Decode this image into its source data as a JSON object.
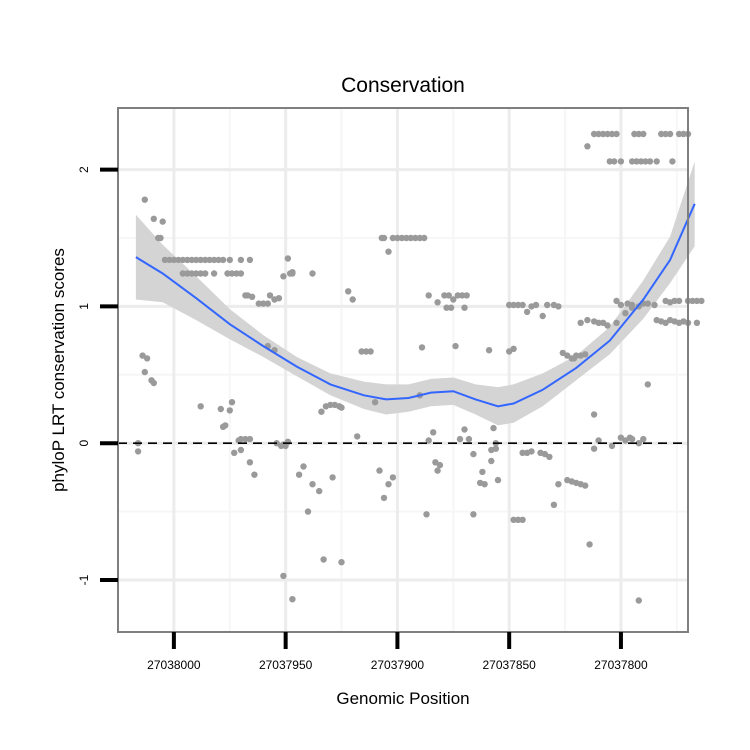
{
  "chart_data": {
    "type": "scatter",
    "title": "Conservation",
    "xlabel": "Genomic Position",
    "ylabel": "phyloP LRT conservation scores",
    "x_reversed": true,
    "xlim": [
      27038025,
      27037770
    ],
    "ylim": [
      -1.38,
      2.45
    ],
    "x_ticks": [
      {
        "value": 27038000,
        "label": "27038000"
      },
      {
        "value": 27037950,
        "label": "27037950"
      },
      {
        "value": 27037900,
        "label": "27037900"
      },
      {
        "value": 27037850,
        "label": "27037850"
      },
      {
        "value": 27037800,
        "label": "27037800"
      }
    ],
    "y_ticks": [
      {
        "value": -1,
        "label": "-1"
      },
      {
        "value": 0,
        "label": "0"
      },
      {
        "value": 1,
        "label": "1"
      },
      {
        "value": 2,
        "label": "2"
      }
    ],
    "reference_line": {
      "y": 0,
      "style": "dashed"
    },
    "smooth_line": {
      "color": "#3366ff",
      "fit": [
        [
          27038017,
          1.36
        ],
        [
          27038005,
          1.24
        ],
        [
          27037990,
          1.06
        ],
        [
          27037975,
          0.87
        ],
        [
          27037960,
          0.71
        ],
        [
          27037945,
          0.56
        ],
        [
          27037930,
          0.43
        ],
        [
          27037915,
          0.35
        ],
        [
          27037905,
          0.32
        ],
        [
          27037895,
          0.33
        ],
        [
          27037885,
          0.37
        ],
        [
          27037875,
          0.38
        ],
        [
          27037865,
          0.32
        ],
        [
          27037855,
          0.27
        ],
        [
          27037848,
          0.29
        ],
        [
          27037835,
          0.39
        ],
        [
          27037820,
          0.55
        ],
        [
          27037805,
          0.75
        ],
        [
          27037790,
          1.05
        ],
        [
          27037778,
          1.34
        ],
        [
          27037767,
          1.75
        ]
      ],
      "upper": [
        [
          27038017,
          1.67
        ],
        [
          27038005,
          1.45
        ],
        [
          27037990,
          1.22
        ],
        [
          27037975,
          0.98
        ],
        [
          27037960,
          0.79
        ],
        [
          27037945,
          0.63
        ],
        [
          27037930,
          0.51
        ],
        [
          27037915,
          0.45
        ],
        [
          27037905,
          0.43
        ],
        [
          27037895,
          0.43
        ],
        [
          27037885,
          0.47
        ],
        [
          27037875,
          0.48
        ],
        [
          27037865,
          0.43
        ],
        [
          27037855,
          0.41
        ],
        [
          27037848,
          0.43
        ],
        [
          27037835,
          0.51
        ],
        [
          27037820,
          0.64
        ],
        [
          27037805,
          0.85
        ],
        [
          27037790,
          1.19
        ],
        [
          27037778,
          1.51
        ],
        [
          27037767,
          2.06
        ]
      ],
      "lower": [
        [
          27038017,
          1.05
        ],
        [
          27038005,
          1.03
        ],
        [
          27037990,
          0.9
        ],
        [
          27037975,
          0.76
        ],
        [
          27037960,
          0.63
        ],
        [
          27037945,
          0.49
        ],
        [
          27037930,
          0.35
        ],
        [
          27037915,
          0.25
        ],
        [
          27037905,
          0.21
        ],
        [
          27037895,
          0.23
        ],
        [
          27037885,
          0.27
        ],
        [
          27037875,
          0.28
        ],
        [
          27037865,
          0.21
        ],
        [
          27037855,
          0.13
        ],
        [
          27037848,
          0.15
        ],
        [
          27037835,
          0.27
        ],
        [
          27037820,
          0.46
        ],
        [
          27037805,
          0.65
        ],
        [
          27037790,
          0.91
        ],
        [
          27037778,
          1.17
        ],
        [
          27037767,
          1.44
        ]
      ]
    },
    "points": [
      [
        27038016,
        0.0
      ],
      [
        27038016,
        -0.06
      ],
      [
        27038014,
        0.64
      ],
      [
        27038013,
        0.52
      ],
      [
        27038012,
        0.62
      ],
      [
        27038013,
        1.78
      ],
      [
        27038010,
        0.46
      ],
      [
        27038009,
        0.44
      ],
      [
        27038009,
        1.64
      ],
      [
        27038007,
        1.5
      ],
      [
        27038006,
        1.5
      ],
      [
        27038005,
        1.62
      ],
      [
        27038004,
        1.34
      ],
      [
        27038002,
        1.34
      ],
      [
        27038000,
        1.34
      ],
      [
        27037998,
        1.34
      ],
      [
        27037996,
        1.34
      ],
      [
        27037994,
        1.34
      ],
      [
        27037992,
        1.34
      ],
      [
        27037990,
        1.34
      ],
      [
        27037988,
        1.34
      ],
      [
        27037986,
        1.34
      ],
      [
        27037984,
        1.34
      ],
      [
        27037982,
        1.34
      ],
      [
        27037980,
        1.34
      ],
      [
        27037978,
        1.34
      ],
      [
        27037975,
        1.34
      ],
      [
        27037970,
        1.34
      ],
      [
        27037966,
        1.34
      ],
      [
        27037996,
        1.24
      ],
      [
        27037994,
        1.24
      ],
      [
        27037992,
        1.24
      ],
      [
        27037990,
        1.24
      ],
      [
        27037988,
        1.24
      ],
      [
        27037986,
        1.24
      ],
      [
        27037982,
        1.24
      ],
      [
        27037976,
        1.24
      ],
      [
        27037974,
        1.24
      ],
      [
        27037972,
        1.24
      ],
      [
        27037970,
        1.24
      ],
      [
        27037988,
        0.27
      ],
      [
        27037979,
        0.25
      ],
      [
        27037978,
        0.12
      ],
      [
        27037977,
        0.13
      ],
      [
        27037975,
        0.24
      ],
      [
        27037974,
        0.3
      ],
      [
        27037971,
        0.02
      ],
      [
        27037970,
        0.03
      ],
      [
        27037968,
        0.03
      ],
      [
        27037966,
        0.03
      ],
      [
        27037968,
        1.08
      ],
      [
        27037967,
        1.08
      ],
      [
        27037965,
        1.07
      ],
      [
        27037962,
        1.02
      ],
      [
        27037960,
        1.02
      ],
      [
        27037958,
        1.02
      ],
      [
        27037957,
        1.08
      ],
      [
        27037955,
        1.05
      ],
      [
        27037953,
        1.06
      ],
      [
        27037973,
        -0.07
      ],
      [
        27037970,
        -0.05
      ],
      [
        27037966,
        -0.14
      ],
      [
        27037964,
        -0.23
      ],
      [
        27037958,
        0.71
      ],
      [
        27037955,
        0.68
      ],
      [
        27037954,
        0.0
      ],
      [
        27037952,
        -0.02
      ],
      [
        27037951,
        -0.01
      ],
      [
        27037950,
        -0.02
      ],
      [
        27037949,
        0.01
      ],
      [
        27037951,
        1.22
      ],
      [
        27037949,
        1.35
      ],
      [
        27037947,
        1.25
      ],
      [
        27037948,
        1.24
      ],
      [
        27037947,
        1.24
      ],
      [
        27037938,
        1.24
      ],
      [
        27037951,
        -0.97
      ],
      [
        27037947,
        -1.14
      ],
      [
        27037944,
        -0.23
      ],
      [
        27037942,
        -0.17
      ],
      [
        27037938,
        -0.3
      ],
      [
        27037940,
        -0.5
      ],
      [
        27037935,
        -0.35
      ],
      [
        27037934,
        0.23
      ],
      [
        27037932,
        0.27
      ],
      [
        27037930,
        0.28
      ],
      [
        27037928,
        0.28
      ],
      [
        27037926,
        0.27
      ],
      [
        27037925,
        0.26
      ],
      [
        27037933,
        -0.85
      ],
      [
        27037929,
        -0.25
      ],
      [
        27037925,
        -0.87
      ],
      [
        27037922,
        1.11
      ],
      [
        27037920,
        1.05
      ],
      [
        27037918,
        0.05
      ],
      [
        27037916,
        0.67
      ],
      [
        27037914,
        0.67
      ],
      [
        27037912,
        0.67
      ],
      [
        27037910,
        0.3
      ],
      [
        27037908,
        -0.2
      ],
      [
        27037906,
        -0.4
      ],
      [
        27037904,
        -0.3
      ],
      [
        27037902,
        -0.25
      ],
      [
        27037907,
        1.5
      ],
      [
        27037906,
        1.5
      ],
      [
        27037904,
        1.4
      ],
      [
        27037902,
        1.5
      ],
      [
        27037900,
        1.5
      ],
      [
        27037898,
        1.5
      ],
      [
        27037896,
        1.5
      ],
      [
        27037894,
        1.5
      ],
      [
        27037892,
        1.5
      ],
      [
        27037890,
        1.5
      ],
      [
        27037888,
        1.5
      ],
      [
        27037890,
        0.35
      ],
      [
        27037889,
        0.7
      ],
      [
        27037887,
        -0.52
      ],
      [
        27037886,
        0.02
      ],
      [
        27037884,
        0.08
      ],
      [
        27037883,
        -0.14
      ],
      [
        27037882,
        -0.2
      ],
      [
        27037881,
        -0.16
      ],
      [
        27037886,
        1.08
      ],
      [
        27037882,
        1.03
      ],
      [
        27037879,
        1.08
      ],
      [
        27037877,
        1.08
      ],
      [
        27037875,
        1.05
      ],
      [
        27037873,
        1.08
      ],
      [
        27037871,
        1.08
      ],
      [
        27037869,
        1.08
      ],
      [
        27037876,
        0.99
      ],
      [
        27037878,
        0.99
      ],
      [
        27037870,
        0.99
      ],
      [
        27037874,
        0.71
      ],
      [
        27037872,
        0.03
      ],
      [
        27037870,
        0.1
      ],
      [
        27037868,
        0.03
      ],
      [
        27037866,
        -0.08
      ],
      [
        27037863,
        -0.29
      ],
      [
        27037861,
        -0.3
      ],
      [
        27037858,
        -0.13
      ],
      [
        27037856,
        -0.04
      ],
      [
        27037855,
        -0.27
      ],
      [
        27037856,
        0.0
      ],
      [
        27037857,
        0.11
      ],
      [
        27037859,
        0.68
      ],
      [
        27037866,
        -0.52
      ],
      [
        27037862,
        -0.21
      ],
      [
        27037858,
        -0.05
      ],
      [
        27037848,
        -0.56
      ],
      [
        27037846,
        -0.56
      ],
      [
        27037844,
        -0.56
      ],
      [
        27037850,
        1.01
      ],
      [
        27037848,
        1.01
      ],
      [
        27037846,
        1.01
      ],
      [
        27037844,
        1.01
      ],
      [
        27037842,
        0.96
      ],
      [
        27037840,
        1.0
      ],
      [
        27037838,
        1.01
      ],
      [
        27037835,
        0.93
      ],
      [
        27037833,
        1.01
      ],
      [
        27037830,
        1.01
      ],
      [
        27037828,
        1.0
      ],
      [
        27037850,
        0.67
      ],
      [
        27037848,
        0.69
      ],
      [
        27037844,
        -0.07
      ],
      [
        27037842,
        -0.07
      ],
      [
        27037840,
        -0.06
      ],
      [
        27037836,
        -0.07
      ],
      [
        27037834,
        -0.08
      ],
      [
        27037832,
        -0.1
      ],
      [
        27037830,
        -0.45
      ],
      [
        27037828,
        -0.3
      ],
      [
        27037826,
        0.66
      ],
      [
        27037824,
        0.64
      ],
      [
        27037822,
        0.62
      ],
      [
        27037821,
        0.62
      ],
      [
        27037820,
        0.64
      ],
      [
        27037818,
        0.64
      ],
      [
        27037816,
        0.65
      ],
      [
        27037824,
        -0.27
      ],
      [
        27037822,
        -0.28
      ],
      [
        27037820,
        -0.29
      ],
      [
        27037818,
        -0.3
      ],
      [
        27037816,
        -0.31
      ],
      [
        27037814,
        -0.74
      ],
      [
        27037812,
        -0.04
      ],
      [
        27037818,
        0.88
      ],
      [
        27037815,
        0.9
      ],
      [
        27037812,
        0.89
      ],
      [
        27037810,
        0.88
      ],
      [
        27037808,
        0.88
      ],
      [
        27037806,
        0.86
      ],
      [
        27037802,
        0.88
      ],
      [
        27037798,
        0.95
      ],
      [
        27037795,
        0.99
      ],
      [
        27037815,
        2.17
      ],
      [
        27037812,
        2.26
      ],
      [
        27037810,
        2.26
      ],
      [
        27037808,
        2.26
      ],
      [
        27037806,
        2.26
      ],
      [
        27037804,
        2.26
      ],
      [
        27037802,
        2.26
      ],
      [
        27037794,
        2.26
      ],
      [
        27037792,
        2.26
      ],
      [
        27037790,
        2.26
      ],
      [
        27037782,
        2.26
      ],
      [
        27037780,
        2.26
      ],
      [
        27037778,
        2.26
      ],
      [
        27037774,
        2.26
      ],
      [
        27037772,
        2.26
      ],
      [
        27037770,
        2.26
      ],
      [
        27037805,
        2.06
      ],
      [
        27037803,
        2.06
      ],
      [
        27037800,
        2.06
      ],
      [
        27037795,
        2.06
      ],
      [
        27037793,
        2.06
      ],
      [
        27037791,
        2.06
      ],
      [
        27037789,
        2.06
      ],
      [
        27037787,
        2.06
      ],
      [
        27037784,
        2.06
      ],
      [
        27037777,
        2.06
      ],
      [
        27037812,
        0.21
      ],
      [
        27037810,
        0.02
      ],
      [
        27037804,
        -0.02
      ],
      [
        27037800,
        0.04
      ],
      [
        27037798,
        0.02
      ],
      [
        27037796,
        0.04
      ],
      [
        27037795,
        0.03
      ],
      [
        27037790,
        0.03
      ],
      [
        27037792,
        0.0
      ],
      [
        27037802,
        1.04
      ],
      [
        27037800,
        1.01
      ],
      [
        27037797,
        1.02
      ],
      [
        27037795,
        1.01
      ],
      [
        27037792,
        1.0
      ],
      [
        27037790,
        1.02
      ],
      [
        27037788,
        1.02
      ],
      [
        27037785,
        1.01
      ],
      [
        27037788,
        0.43
      ],
      [
        27037792,
        -1.15
      ],
      [
        27037784,
        0.9
      ],
      [
        27037782,
        0.89
      ],
      [
        27037780,
        0.88
      ],
      [
        27037778,
        0.9
      ],
      [
        27037776,
        0.89
      ],
      [
        27037774,
        0.88
      ],
      [
        27037772,
        0.89
      ],
      [
        27037770,
        0.88
      ],
      [
        27037766,
        0.88
      ],
      [
        27037780,
        1.04
      ],
      [
        27037778,
        1.03
      ],
      [
        27037776,
        1.04
      ],
      [
        27037774,
        1.04
      ],
      [
        27037770,
        1.04
      ],
      [
        27037768,
        1.04
      ],
      [
        27037766,
        1.04
      ],
      [
        27037764,
        1.04
      ]
    ],
    "grid": true,
    "point_color": "#9a9a9a",
    "band_color": "#d4d4d4"
  }
}
